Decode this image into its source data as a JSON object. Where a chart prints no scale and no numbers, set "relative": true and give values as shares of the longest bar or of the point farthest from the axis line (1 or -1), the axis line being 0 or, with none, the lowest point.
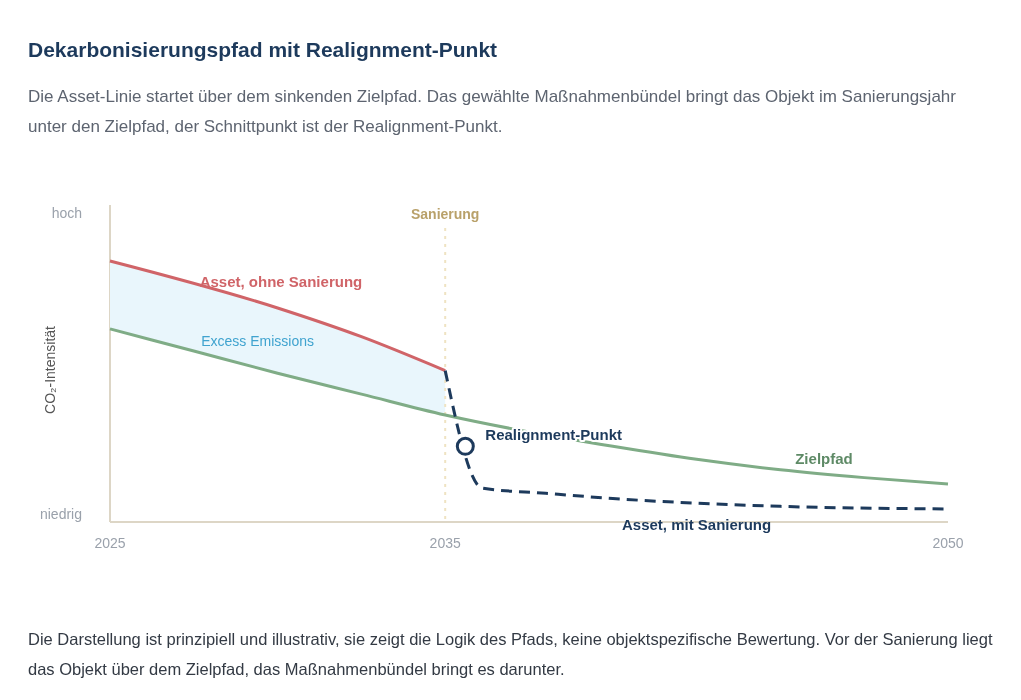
{
  "chart_data": {
    "type": "line",
    "title": "Dekarbonisierungspfad mit Realignment-Punkt",
    "subtitle": "Die Asset-Linie startet über dem sinkenden Zielpfad. Das gewählte Maßnahmenbündel bringt das Objekt im Sanierungsjahr unter den Zielpfad, der Schnittpunkt ist der Realignment-Punkt.",
    "ylabel": "CO₂-Intensität",
    "relative": true,
    "xlim": [
      2025,
      2050
    ],
    "xticks": [
      2025,
      2035,
      2050
    ],
    "grid": false,
    "series": [
      {
        "name": "Zielpfad",
        "color": "#7fac86",
        "x": [
          2025,
          2027.5,
          2030,
          2032.5,
          2035,
          2037.5,
          2040,
          2042.5,
          2045,
          2047.5,
          2050
        ],
        "values": [
          0.74,
          0.655,
          0.57,
          0.49,
          0.41,
          0.345,
          0.29,
          0.24,
          0.2,
          0.17,
          0.146
        ]
      },
      {
        "name": "Asset, ohne Sanierung",
        "color": "#d06468",
        "x": [
          2025,
          2030,
          2032.5,
          2035
        ],
        "values": [
          1,
          0.82,
          0.71,
          0.58
        ]
      },
      {
        "name": "Asset, mit Sanierung",
        "color": "#1d3a5c",
        "line_style": "dashed",
        "x": [
          2035,
          2036.1,
          2038,
          2040,
          2045,
          2050
        ],
        "values": [
          0.58,
          0.13,
          0.11,
          0.09,
          0.06,
          0.05
        ]
      }
    ],
    "ref_lines": [
      {
        "axis": "x",
        "value": 2035,
        "label": "Sanierung",
        "color": "#efe3c2",
        "line_style": "dotted"
      }
    ],
    "annotations": [
      "hoch",
      "niedrig",
      "Excess Emissions",
      {
        "text": "Realignment-Punkt",
        "x": 2035.6,
        "y": 0.29
      },
      "Die Darstellung ist prinzipiell und illustrativ, sie zeigt die Logik des Pfads, keine objektspezifische Bewertung. Vor der Sanierung liegt das Objekt über dem Zielpfad, das Maßnahmenbündel bringt es darunter."
    ]
  }
}
